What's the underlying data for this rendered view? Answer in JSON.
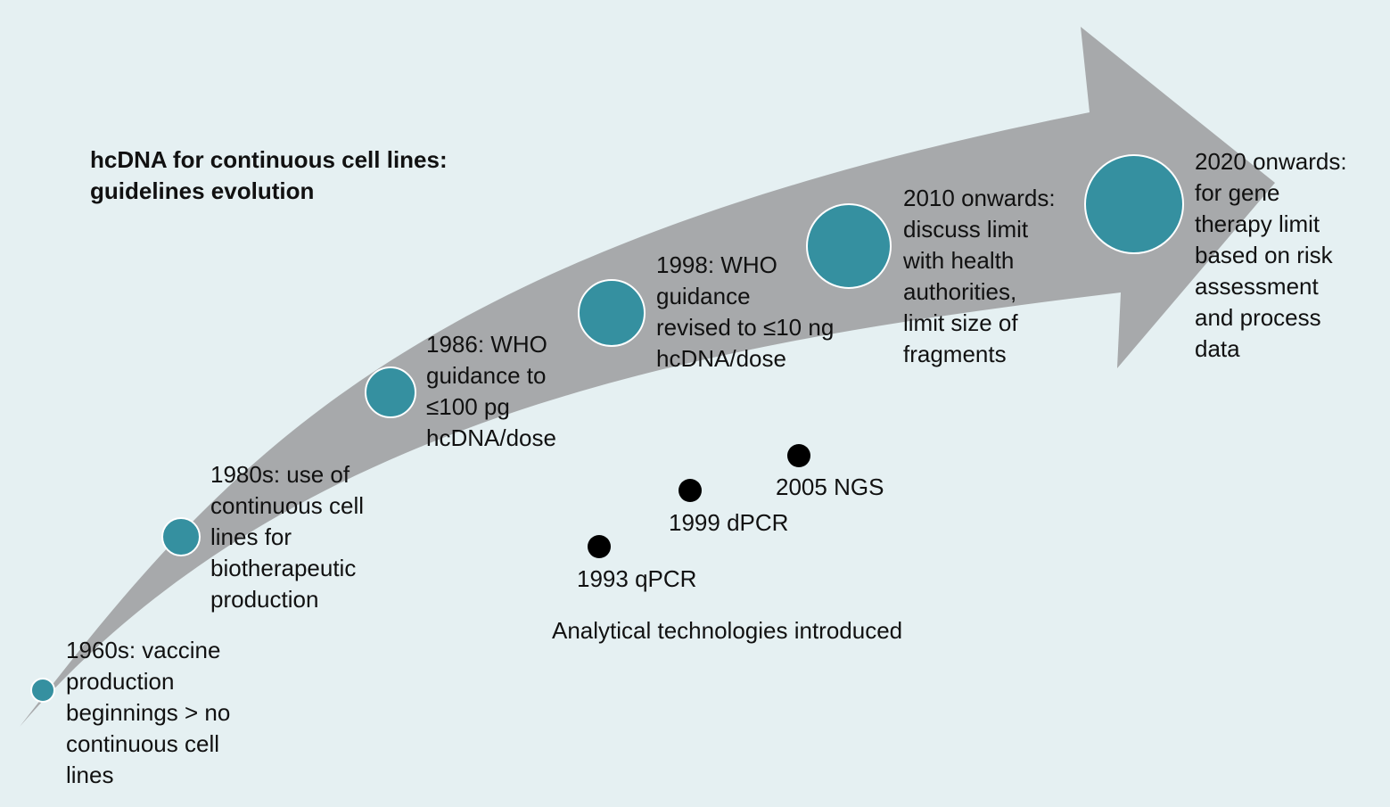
{
  "title": "hcDNA for continuous cell lines:\nguidelines evolution",
  "title_lines": [
    "hcDNA for continuous cell lines:",
    "guidelines evolution"
  ],
  "colors": {
    "background": "#e5f0f2",
    "arrow": "#a7a9ab",
    "milestone": "#3590a0",
    "milestone_border": "#ffffff",
    "tech_dot": "#000000"
  },
  "milestones": [
    {
      "label": "1960s: vaccine\nproduction\nbeginnings > no\ncontinuous cell\nlines"
    },
    {
      "label": "1980s: use of\ncontinuous cell\nlines for\nbiotherapeutic\nproduction"
    },
    {
      "label": "1986: WHO\nguidance to\n≤100 pg\nhcDNA/dose"
    },
    {
      "label": "1998: WHO\nguidance\nrevised to ≤10 ng\nhcDNA/dose"
    },
    {
      "label": "2010 onwards:\ndiscuss limit\nwith health\nauthorities,\nlimit size of\nfragments"
    },
    {
      "label": "2020 onwards:\nfor gene\ntherapy limit\nbased on risk\nassessment\nand process\ndata"
    }
  ],
  "technologies": {
    "caption": "Analytical technologies introduced",
    "items": [
      {
        "label": "1993 qPCR"
      },
      {
        "label": "1999 dPCR"
      },
      {
        "label": "2005 NGS"
      }
    ]
  }
}
